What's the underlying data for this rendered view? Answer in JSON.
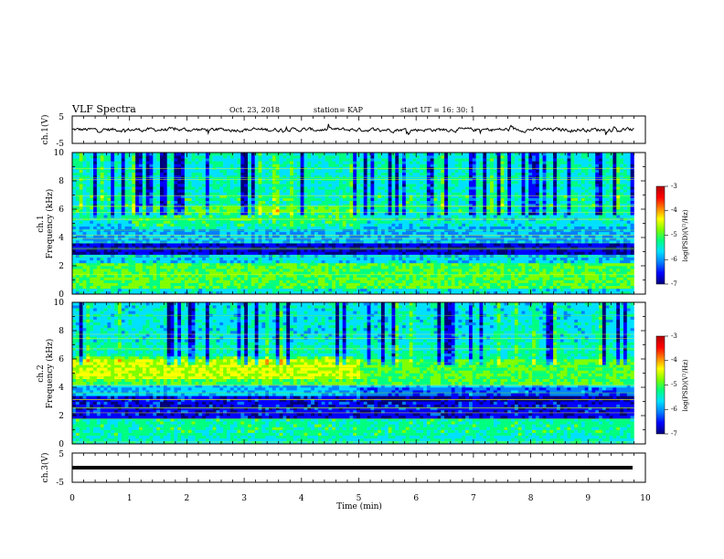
{
  "header": {
    "title": "VLF Spectra",
    "date": "Oct. 23, 2018",
    "station": "station= KAP",
    "start": "start  UT =  16: 30: 1"
  },
  "colors": {
    "colormap": [
      "#00007a",
      "#0000ff",
      "#0080ff",
      "#00e0ff",
      "#00ff80",
      "#7fff00",
      "#ffff00",
      "#ff8000",
      "#ff0000",
      "#b40000"
    ]
  },
  "chart_data": [
    {
      "type": "line",
      "panel": "ch1-waveform",
      "ylabel": "ch.1(V)",
      "ylim": [
        -5,
        5
      ],
      "yticks": [
        "5",
        "-5"
      ],
      "xlim": [
        0,
        10
      ],
      "approx_range": [
        -1.5,
        1.5
      ]
    },
    {
      "type": "heatmap",
      "panel": "ch1-spectrogram",
      "ylabel_channel": "ch.1",
      "ylabel": "Frequency (kHz)",
      "ylim": [
        0,
        10
      ],
      "yticks": [
        "0",
        "2",
        "4",
        "6",
        "8",
        "10"
      ],
      "xlim": [
        0,
        9.8
      ],
      "colorbar": {
        "label": "log(PSD)(V²/Hz)",
        "ticks": [
          "-3",
          "-4",
          "-5",
          "-6",
          "-7"
        ],
        "range": [
          -7,
          -3
        ]
      }
    },
    {
      "type": "heatmap",
      "panel": "ch2-spectrogram",
      "ylabel_channel": "ch.2",
      "ylabel": "Frequency (kHz)",
      "ylim": [
        0,
        10
      ],
      "yticks": [
        "0",
        "2",
        "4",
        "6",
        "8",
        "10"
      ],
      "xlim": [
        0,
        9.8
      ],
      "colorbar": {
        "label": "log(PSD)(V²/Hz)",
        "ticks": [
          "-3",
          "-4",
          "-5",
          "-6",
          "-7"
        ],
        "range": [
          -7,
          -3
        ]
      }
    },
    {
      "type": "line",
      "panel": "ch3-waveform",
      "ylabel": "ch.3(V)",
      "ylim": [
        -5,
        5
      ],
      "yticks": [
        "5",
        "-5"
      ],
      "xlim": [
        0,
        10
      ],
      "approx_range": [
        0,
        0
      ]
    }
  ],
  "xaxis": {
    "label": "Time (min)",
    "ticks": [
      "0",
      "1",
      "2",
      "3",
      "4",
      "5",
      "6",
      "7",
      "8",
      "9",
      "10"
    ]
  }
}
